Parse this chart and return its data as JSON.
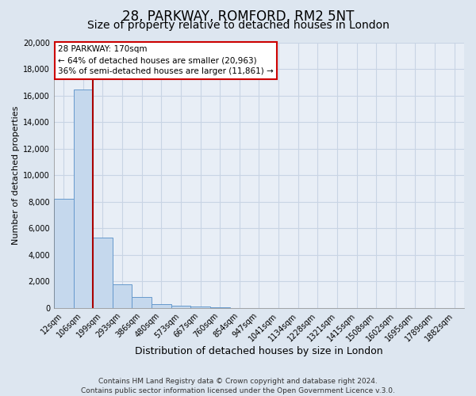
{
  "title": "28, PARKWAY, ROMFORD, RM2 5NT",
  "subtitle": "Size of property relative to detached houses in London",
  "xlabel": "Distribution of detached houses by size in London",
  "ylabel": "Number of detached properties",
  "bar_labels": [
    "12sqm",
    "106sqm",
    "199sqm",
    "293sqm",
    "386sqm",
    "480sqm",
    "573sqm",
    "667sqm",
    "760sqm",
    "854sqm",
    "947sqm",
    "1041sqm",
    "1134sqm",
    "1228sqm",
    "1321sqm",
    "1415sqm",
    "1508sqm",
    "1602sqm",
    "1695sqm",
    "1789sqm",
    "1882sqm"
  ],
  "bar_values": [
    8200,
    16500,
    5300,
    1800,
    800,
    300,
    150,
    80,
    50,
    0,
    0,
    0,
    0,
    0,
    0,
    0,
    0,
    0,
    0,
    0,
    0
  ],
  "bar_color": "#c5d8ed",
  "bar_edge_color": "#6699cc",
  "property_line_color": "#aa0000",
  "ylim": [
    0,
    20000
  ],
  "yticks": [
    0,
    2000,
    4000,
    6000,
    8000,
    10000,
    12000,
    14000,
    16000,
    18000,
    20000
  ],
  "annotation_title": "28 PARKWAY: 170sqm",
  "annotation_line1": "← 64% of detached houses are smaller (20,963)",
  "annotation_line2": "36% of semi-detached houses are larger (11,861) →",
  "annotation_box_color": "#ffffff",
  "annotation_box_edge": "#cc0000",
  "footer1": "Contains HM Land Registry data © Crown copyright and database right 2024.",
  "footer2": "Contains public sector information licensed under the Open Government Licence v.3.0.",
  "background_color": "#dde6f0",
  "plot_bg_color": "#e8eef6",
  "grid_color": "#c8d4e4",
  "title_fontsize": 12,
  "subtitle_fontsize": 10,
  "xlabel_fontsize": 9,
  "ylabel_fontsize": 8,
  "tick_fontsize": 7,
  "footer_fontsize": 6.5,
  "red_line_x": 1.5
}
